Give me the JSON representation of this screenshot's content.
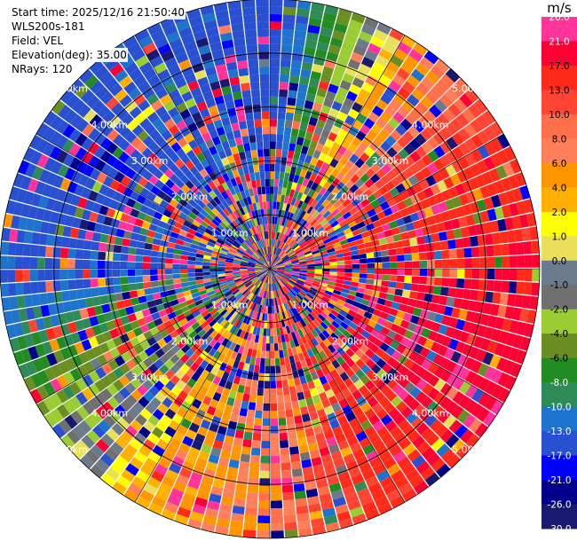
{
  "info": {
    "start_time": "Start time: 2025/12/16 21:50:40",
    "site": "WLS200s-181",
    "field": "Field: VEL",
    "elevation": "Elevation(deg): 35.00",
    "nrays": "NRays: 120"
  },
  "colorbar": {
    "unit": "m/s",
    "ticks": [
      "26.0",
      "21.0",
      "17.0",
      "13.0",
      "10.0",
      "8.0",
      "6.0",
      "4.0",
      "2.0",
      "1.0",
      "0.0",
      "-1.0",
      "-2.0",
      "-4.0",
      "-6.0",
      "-8.0",
      "-10.0",
      "-13.0",
      "-17.0",
      "-21.0",
      "-26.0",
      "-30.0"
    ],
    "colors": [
      "#ff3399",
      "#ff0033",
      "#ff2a1a",
      "#ff4433",
      "#ff6f4a",
      "#ff7f5a",
      "#ff9500",
      "#ffb000",
      "#ffff00",
      "#e8e05a",
      "#6b7b8c",
      "#707070",
      "#9acd32",
      "#6b8e23",
      "#228b22",
      "#2e8b57",
      "#1e73cd",
      "#2850d0",
      "#0000ff",
      "#00008b",
      "#191970"
    ]
  },
  "chart_data": {
    "type": "heatmap",
    "projection": "polar PPI",
    "field": "VEL",
    "units": "m/s",
    "range_rings_km": [
      1.0,
      2.0,
      3.0,
      4.0,
      5.0
    ],
    "range_ring_labels": [
      "1.00km",
      "2.00km",
      "3.00km",
      "4.00km",
      "5.00km"
    ],
    "nrays": 120,
    "color_scale": [
      -30.0,
      26.0
    ],
    "dominant_velocity_by_azimuth_deg": [
      {
        "az": 0,
        "vel": -15
      },
      {
        "az": 30,
        "vel": 4
      },
      {
        "az": 60,
        "vel": 14
      },
      {
        "az": 90,
        "vel": 18
      },
      {
        "az": 120,
        "vel": 20
      },
      {
        "az": 150,
        "vel": 14
      },
      {
        "az": 180,
        "vel": 7
      },
      {
        "az": 210,
        "vel": 3
      },
      {
        "az": 240,
        "vel": -5
      },
      {
        "az": 270,
        "vel": -14
      },
      {
        "az": 300,
        "vel": -16
      },
      {
        "az": 330,
        "vel": -14
      }
    ]
  }
}
